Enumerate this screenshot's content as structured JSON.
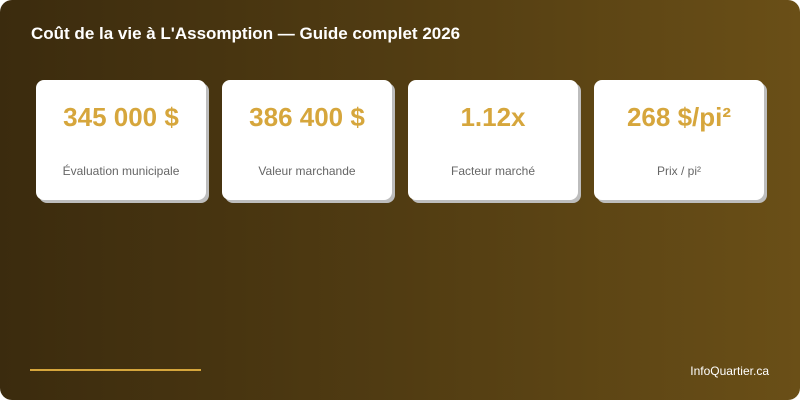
{
  "header": {
    "title": "Coût de la vie à L'Assomption — Guide complet 2026"
  },
  "cards": [
    {
      "value": "345 000 $",
      "label": "Évaluation municipale"
    },
    {
      "value": "386 400 $",
      "label": "Valeur marchande"
    },
    {
      "value": "1.12x",
      "label": "Facteur marché"
    },
    {
      "value": "268 $/pi²",
      "label": "Prix / pi²"
    }
  ],
  "footer": {
    "brand": "InfoQuartier.ca"
  },
  "colors": {
    "accent": "#d6a63c",
    "bg_start": "#3b2b0e",
    "bg_end": "#6a4f17"
  }
}
